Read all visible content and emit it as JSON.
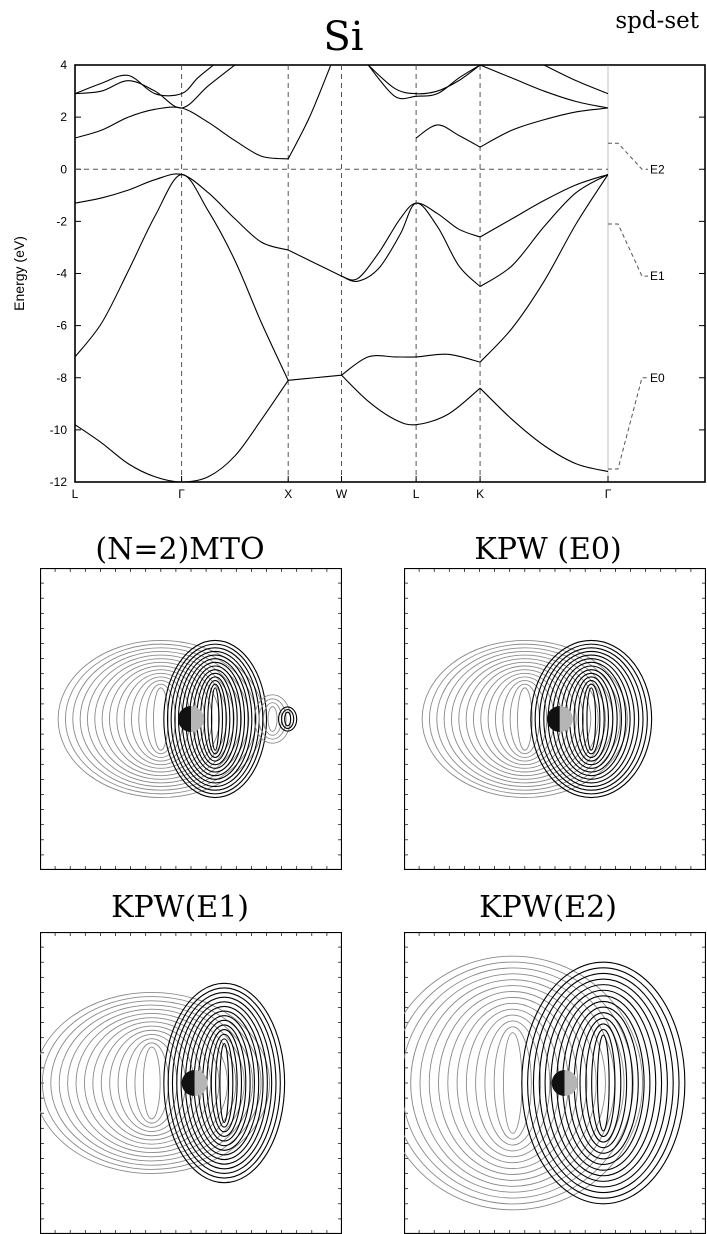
{
  "corner_label": "spd-set",
  "chart_data": [
    {
      "type": "line",
      "title": "Si",
      "ylabel": "Energy (eV)",
      "ylim": [
        -12,
        4
      ],
      "yticks": [
        4,
        2,
        0,
        -2,
        -4,
        -6,
        -8,
        -10,
        -12
      ],
      "xticks": [
        "L",
        "Γ",
        "X",
        "W",
        "L",
        "K",
        "Γ"
      ],
      "xtick_positions": [
        0,
        1,
        2,
        2.5,
        3.2,
        3.8,
        5.0
      ],
      "fermi_level": 0,
      "side_labels": [
        {
          "label": "E2",
          "energy": 0
        },
        {
          "label": "E1",
          "energy": -4.1
        },
        {
          "label": "E0",
          "energy": -8.0
        }
      ],
      "bands": [
        {
          "x": [
            0,
            0.25,
            0.5,
            0.75,
            1,
            1.25,
            1.5,
            1.75,
            2
          ],
          "y": [
            -9.8,
            -10.5,
            -11.3,
            -11.8,
            -12.0,
            -11.8,
            -11.0,
            -9.6,
            -8.1
          ]
        },
        {
          "x": [
            0,
            0.25,
            0.5,
            0.75,
            1,
            1.25,
            1.5,
            1.75,
            2
          ],
          "y": [
            -7.2,
            -5.9,
            -3.9,
            -1.8,
            -0.2,
            -1.6,
            -3.5,
            -5.9,
            -8.1
          ]
        },
        {
          "x": [
            0,
            0.25,
            0.5,
            0.75,
            1,
            1.25,
            1.5,
            1.75,
            2
          ],
          "y": [
            -1.3,
            -1.1,
            -0.8,
            -0.4,
            -0.2,
            -0.9,
            -1.9,
            -2.8,
            -3.1
          ]
        },
        {
          "x": [
            0,
            0.25,
            0.5,
            0.75,
            1,
            1.25,
            1.5,
            1.75,
            2
          ],
          "y": [
            1.2,
            1.5,
            2.0,
            2.3,
            2.35,
            1.8,
            1.1,
            0.5,
            0.4
          ]
        },
        {
          "x": [
            0,
            0.25,
            0.5,
            0.75,
            1,
            1.25,
            1.5
          ],
          "y": [
            2.9,
            3.0,
            3.4,
            3.0,
            2.35,
            3.2,
            4.0
          ]
        },
        {
          "x": [
            0,
            0.25,
            0.5,
            0.75,
            1,
            1.15,
            1.3
          ],
          "y": [
            2.9,
            3.3,
            3.6,
            2.9,
            2.9,
            3.5,
            4.0
          ]
        },
        {
          "x": [
            2,
            2.25,
            2.5
          ],
          "y": [
            -8.1,
            -8.0,
            -7.9
          ]
        },
        {
          "x": [
            2,
            2.25,
            2.5
          ],
          "y": [
            -3.1,
            -3.6,
            -4.1
          ]
        },
        {
          "x": [
            2,
            2.2,
            2.4
          ],
          "y": [
            0.4,
            2.0,
            4.0
          ]
        },
        {
          "x": [
            2.5,
            2.75,
            3.0,
            3.2,
            3.5,
            3.8
          ],
          "y": [
            -7.9,
            -8.9,
            -9.6,
            -9.8,
            -9.4,
            -8.4
          ]
        },
        {
          "x": [
            2.5,
            2.75,
            3.0,
            3.2,
            3.5,
            3.8
          ],
          "y": [
            -7.9,
            -7.2,
            -7.2,
            -7.2,
            -7.1,
            -7.4
          ]
        },
        {
          "x": [
            2.5,
            2.65,
            2.85,
            3.05,
            3.2,
            3.4,
            3.6,
            3.8
          ],
          "y": [
            -4.1,
            -4.2,
            -3.2,
            -1.9,
            -1.3,
            -1.7,
            -2.3,
            -2.6
          ]
        },
        {
          "x": [
            2.5,
            2.65,
            2.85,
            3.05,
            3.2,
            3.4,
            3.6,
            3.8
          ],
          "y": [
            -4.1,
            -4.3,
            -3.8,
            -2.5,
            -1.3,
            -2.2,
            -3.7,
            -4.5
          ]
        },
        {
          "x": [
            3.2,
            3.4,
            3.6,
            3.8
          ],
          "y": [
            1.2,
            1.7,
            1.3,
            0.85
          ]
        },
        {
          "x": [
            2.75,
            3.0,
            3.2,
            3.4,
            3.6,
            3.8
          ],
          "y": [
            4.0,
            3.1,
            2.9,
            3.0,
            3.4,
            4.0
          ]
        },
        {
          "x": [
            2.75,
            3.0,
            3.2,
            3.4,
            3.6,
            3.8
          ],
          "y": [
            4.0,
            2.8,
            2.8,
            2.9,
            3.5,
            4.0
          ]
        },
        {
          "x": [
            3.8,
            4.1,
            4.4,
            4.7,
            5.0
          ],
          "y": [
            -8.4,
            -9.6,
            -10.6,
            -11.3,
            -11.6
          ]
        },
        {
          "x": [
            3.8,
            4.1,
            4.4,
            4.7,
            5.0
          ],
          "y": [
            -7.4,
            -6.1,
            -4.3,
            -2.1,
            -0.2
          ]
        },
        {
          "x": [
            3.8,
            4.1,
            4.4,
            4.7,
            5.0
          ],
          "y": [
            -4.5,
            -3.7,
            -2.2,
            -0.9,
            -0.2
          ]
        },
        {
          "x": [
            3.8,
            4.1,
            4.4,
            4.7,
            5.0
          ],
          "y": [
            -2.6,
            -1.9,
            -1.2,
            -0.6,
            -0.2
          ]
        },
        {
          "x": [
            3.8,
            4.1,
            4.4,
            4.7,
            5.0
          ],
          "y": [
            0.85,
            1.5,
            1.9,
            2.2,
            2.35
          ]
        },
        {
          "x": [
            3.8,
            4.1,
            4.4,
            4.7,
            5.0
          ],
          "y": [
            4.0,
            3.5,
            3.0,
            2.6,
            2.35
          ]
        },
        {
          "x": [
            4.4,
            4.7,
            5.0
          ],
          "y": [
            4.0,
            3.4,
            2.9
          ]
        }
      ]
    },
    {
      "type": "contour",
      "title": "(N=2)MTO",
      "lobes": [
        {
          "sign": "negative",
          "cx": 0.4,
          "cy": 0.5,
          "rx": 0.34,
          "ry": 0.26,
          "levels": 14
        },
        {
          "sign": "positive",
          "cx": 0.58,
          "cy": 0.5,
          "rx": 0.17,
          "ry": 0.26,
          "levels": 14
        },
        {
          "sign": "negative",
          "cx": 0.77,
          "cy": 0.5,
          "rx": 0.06,
          "ry": 0.08,
          "levels": 4
        },
        {
          "sign": "positive",
          "cx": 0.82,
          "cy": 0.5,
          "rx": 0.03,
          "ry": 0.04,
          "levels": 3
        }
      ]
    },
    {
      "type": "contour",
      "title": "KPW (E0)",
      "lobes": [
        {
          "sign": "negative",
          "cx": 0.4,
          "cy": 0.5,
          "rx": 0.34,
          "ry": 0.26,
          "levels": 14
        },
        {
          "sign": "positive",
          "cx": 0.62,
          "cy": 0.5,
          "rx": 0.2,
          "ry": 0.26,
          "levels": 14
        }
      ]
    },
    {
      "type": "contour",
      "title": "KPW(E1)",
      "lobes": [
        {
          "sign": "negative",
          "cx": 0.37,
          "cy": 0.5,
          "rx": 0.39,
          "ry": 0.3,
          "levels": 14
        },
        {
          "sign": "positive",
          "cx": 0.61,
          "cy": 0.5,
          "rx": 0.2,
          "ry": 0.33,
          "levels": 14
        }
      ]
    },
    {
      "type": "contour",
      "title": "KPW(E2)",
      "lobes": [
        {
          "sign": "negative",
          "cx": 0.36,
          "cy": 0.5,
          "rx": 0.43,
          "ry": 0.42,
          "levels": 14
        },
        {
          "sign": "positive",
          "cx": 0.66,
          "cy": 0.5,
          "rx": 0.27,
          "ry": 0.4,
          "levels": 14
        }
      ]
    }
  ]
}
